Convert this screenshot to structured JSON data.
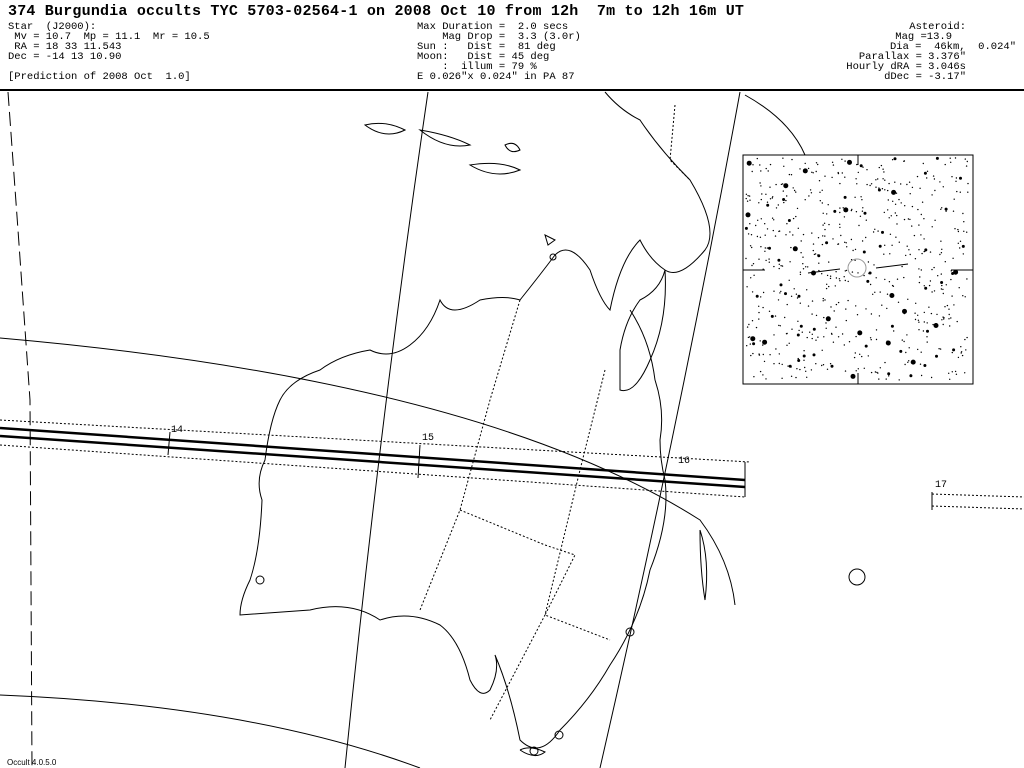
{
  "title": "374 Burgundia occults TYC 5703-02564-1 on 2008 Oct 10 from 12h  7m to 12h 16m UT",
  "star": {
    "heading": "Star  (J2000):",
    "mags": " Mv = 10.7  Mp = 11.1  Mr = 10.5",
    "ra": " RA = 18 33 11.543",
    "dec": "Dec = -14 13 10.90",
    "prediction": "[Prediction of 2008 Oct  1.0]"
  },
  "event": {
    "max_duration": "Max Duration =  2.0 secs",
    "mag_drop": "    Mag Drop =  3.3 (3.0r)",
    "sun": "Sun :   Dist =  81 deg",
    "moon": "Moon:   Dist = 45 deg",
    "illum": "    :  illum = 79 %",
    "ellipse": "E 0.026\"x 0.024\" in PA 87"
  },
  "asteroid": {
    "heading": "Asteroid:",
    "mag": "Mag =13.9",
    "dia": "Dia =  46km,  0.024\"",
    "parallax": "Parallax = 3.376\"",
    "dra": "Hourly dRA = 3.046s",
    "ddec": "dDec = -3.17\""
  },
  "path_time_labels": [
    "14",
    "15",
    "16",
    "17"
  ],
  "version": "Occult 4.0.5.0"
}
